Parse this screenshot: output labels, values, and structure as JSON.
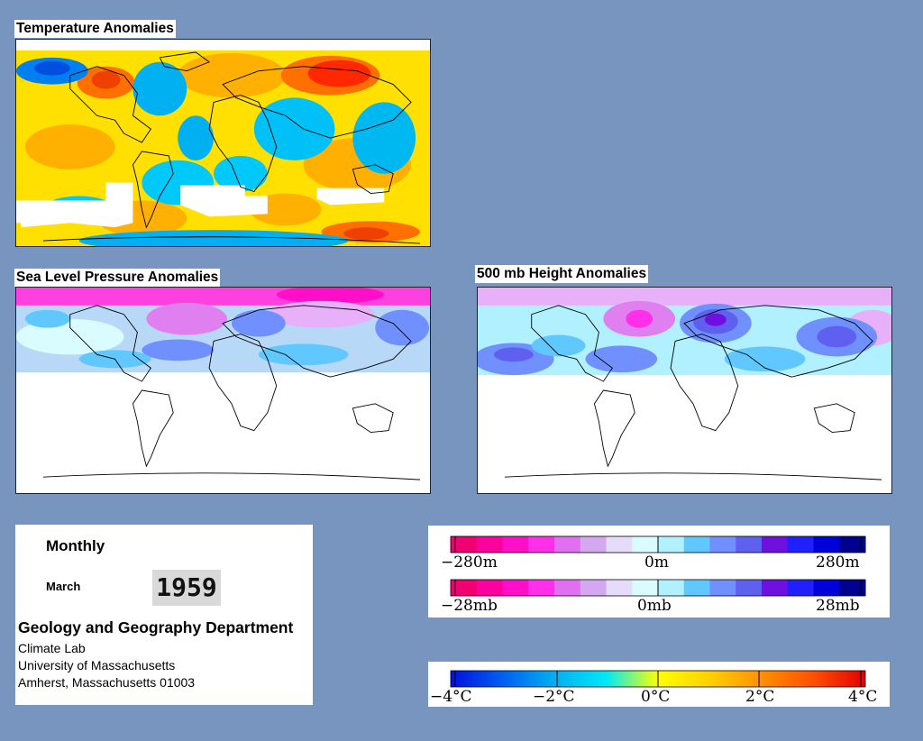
{
  "panels": {
    "temperature": {
      "title": "Temperature Anomalies"
    },
    "slp": {
      "title": "Sea Level Pressure Anomalies"
    },
    "height500": {
      "title": "500 mb Height Anomalies"
    }
  },
  "info": {
    "period": "Monthly",
    "month": "March",
    "year": "1959",
    "department": "Geology and Geography Department",
    "lab": "Climate Lab",
    "university": "University of Massachusetts",
    "address": "Amherst, Massachusetts 01003"
  },
  "legend_height": {
    "colors": [
      "#f00070",
      "#ff00a0",
      "#ff10c8",
      "#ff30e8",
      "#e070f0",
      "#d4a8f0",
      "#e4dcf8",
      "#d8fcff",
      "#b0f0ff",
      "#60c8ff",
      "#7090ff",
      "#6060f0",
      "#7010e0",
      "#2020ff",
      "#0000d8",
      "#000090"
    ],
    "labels": [
      "−280m",
      "0m",
      "280m"
    ]
  },
  "legend_pressure": {
    "colors": [
      "#f00070",
      "#ff00a0",
      "#ff10c8",
      "#ff30e8",
      "#e070f0",
      "#d4a8f0",
      "#e4dcf8",
      "#d8fcff",
      "#b0f0ff",
      "#60c8ff",
      "#7090ff",
      "#6060f0",
      "#7010e0",
      "#2020ff",
      "#0000d8",
      "#000090"
    ],
    "labels": [
      "−28mb",
      "0mb",
      "28mb"
    ]
  },
  "legend_temperature": {
    "stops": [
      "#0010e0",
      "#0060f0",
      "#00b0f0",
      "#00e8f8",
      "#ffff00",
      "#ffd000",
      "#ff9000",
      "#ff5000",
      "#e00000"
    ],
    "labels": [
      "−4°C",
      "−2°C",
      "0°C",
      "2°C",
      "4°C"
    ]
  },
  "colors": {
    "background": "#7895bf",
    "map_white": "#ffffff"
  }
}
